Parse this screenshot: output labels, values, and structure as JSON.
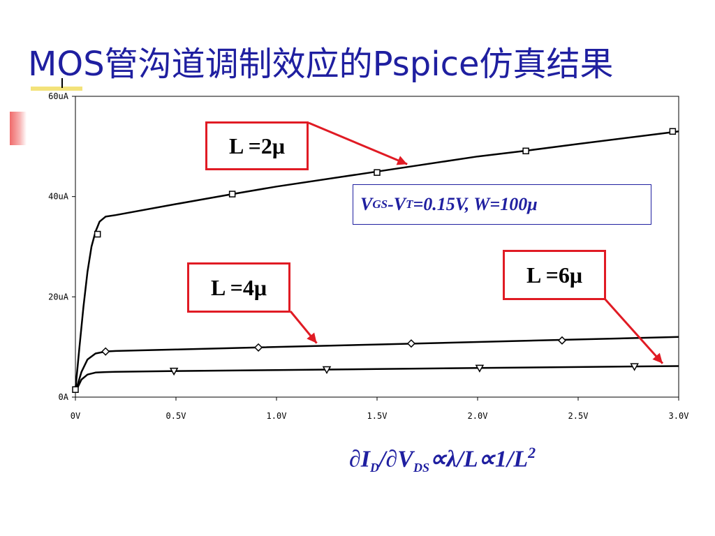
{
  "slide": {
    "title": "MOS管沟道调制效应的Pspice仿真结果"
  },
  "param_box": {
    "v": "V",
    "gs": "GS",
    "minus_v": "-V",
    "t": "T",
    "rest": "=0.15V, W=100μ"
  },
  "formula": {
    "d1": "∂I",
    "d_sub": "D",
    "d2": "/∂V",
    "ds_sub": "DS",
    "rest": "∝λ/L∝1/L",
    "sup": "2"
  },
  "colors": {
    "title": "#1f1fa0",
    "label_border": "#e01b24",
    "arrow": "#e01b24",
    "curve": "#000000",
    "annotation_text": "#1f1fa0"
  },
  "chart_data": {
    "type": "line",
    "x_ticks": [
      "0V",
      "0.5V",
      "1.0V",
      "1.5V",
      "2.0V",
      "2.5V",
      "3.0V"
    ],
    "y_ticks": [
      "0A",
      "20uA",
      "40uA",
      "60uA"
    ],
    "xlim": [
      0,
      3.0
    ],
    "ylim": [
      0,
      60
    ],
    "x_unit": "V",
    "y_unit": "uA",
    "grid": false,
    "series": [
      {
        "name": "L =2μ",
        "marker": "square",
        "x": [
          0,
          0.02,
          0.04,
          0.06,
          0.08,
          0.1,
          0.12,
          0.15,
          0.2,
          0.5,
          0.78,
          1.0,
          1.5,
          2.0,
          2.25,
          2.5,
          3.0
        ],
        "y": [
          1.5,
          10,
          18,
          25,
          30,
          33,
          35,
          36,
          36.3,
          38.5,
          40.5,
          42,
          45,
          48,
          49.2,
          50.5,
          53
        ],
        "marker_x": [
          0.11,
          0.78,
          1.5,
          2.24,
          2.97
        ],
        "marker_y": [
          32.5,
          40.5,
          44.8,
          49.1,
          53
        ]
      },
      {
        "name": "L =4μ",
        "marker": "diamond",
        "x": [
          0,
          0.03,
          0.06,
          0.1,
          0.15,
          0.2,
          0.5,
          0.9,
          1.5,
          2.0,
          2.5,
          3.0
        ],
        "y": [
          1,
          5,
          7.5,
          8.7,
          9.1,
          9.2,
          9.5,
          9.9,
          10.5,
          11,
          11.5,
          12
        ],
        "marker_x": [
          0.15,
          0.91,
          1.67,
          2.42
        ],
        "marker_y": [
          9.1,
          9.9,
          10.7,
          11.3
        ]
      },
      {
        "name": "L =6μ",
        "marker": "triangle",
        "x": [
          0,
          0.03,
          0.06,
          0.1,
          0.15,
          0.2,
          0.5,
          1.0,
          1.5,
          2.0,
          2.5,
          3.0
        ],
        "y": [
          1,
          3.5,
          4.5,
          4.9,
          5,
          5.05,
          5.2,
          5.4,
          5.6,
          5.8,
          6.0,
          6.2
        ],
        "marker_x": [
          0.49,
          1.25,
          2.01,
          2.78
        ],
        "marker_y": [
          5.2,
          5.5,
          5.8,
          6.1
        ]
      }
    ],
    "annotations": [
      {
        "label": "L =2μ",
        "target_series": 0,
        "target_x": 1.65
      },
      {
        "label": "L =4μ",
        "target_series": 1,
        "target_x": 1.2
      },
      {
        "label": "L =6μ",
        "target_series": 2,
        "target_x": 2.92
      }
    ]
  }
}
